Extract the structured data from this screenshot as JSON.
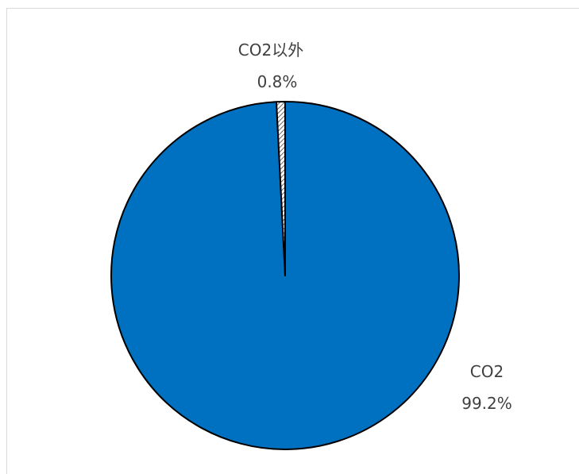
{
  "chart_data": {
    "type": "pie",
    "slices": [
      {
        "label": "CO2",
        "value": 99.2,
        "value_label": "99.2%",
        "color": "#0070c0",
        "pattern": "solid"
      },
      {
        "label": "CO2以外",
        "value": 0.8,
        "value_label": "0.8%",
        "color": "#ffffff",
        "pattern": "diagonal-hatch"
      }
    ],
    "start_angle_deg": 0,
    "direction": "clockwise",
    "legend": "none",
    "data_labels": "outside"
  }
}
